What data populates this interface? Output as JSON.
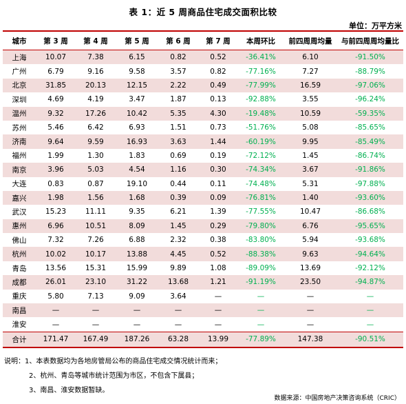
{
  "title": "表 1：近 5 周商品住宅成交面积比较",
  "unit": "单位：万平方米",
  "headers": [
    "城市",
    "第 3 周",
    "第 4 周",
    "第 5 周",
    "第 6 周",
    "第 7 周",
    "本周环比",
    "前四周周均量",
    "与前四周周均量比"
  ],
  "rows": [
    [
      "上海",
      "10.07",
      "7.38",
      "6.15",
      "0.82",
      "0.52",
      "-36.41%",
      "6.10",
      "-91.50%"
    ],
    [
      "广州",
      "6.79",
      "9.16",
      "9.58",
      "3.57",
      "0.82",
      "-77.16%",
      "7.27",
      "-88.79%"
    ],
    [
      "北京",
      "31.85",
      "20.13",
      "12.15",
      "2.22",
      "0.49",
      "-77.99%",
      "16.59",
      "-97.06%"
    ],
    [
      "深圳",
      "4.69",
      "4.19",
      "3.47",
      "1.87",
      "0.13",
      "-92.88%",
      "3.55",
      "-96.24%"
    ],
    [
      "温州",
      "9.32",
      "17.26",
      "10.42",
      "5.35",
      "4.30",
      "-19.48%",
      "10.59",
      "-59.35%"
    ],
    [
      "苏州",
      "5.46",
      "6.42",
      "6.93",
      "1.51",
      "0.73",
      "-51.76%",
      "5.08",
      "-85.65%"
    ],
    [
      "济南",
      "9.64",
      "9.59",
      "16.93",
      "3.63",
      "1.44",
      "-60.19%",
      "9.95",
      "-85.49%"
    ],
    [
      "福州",
      "1.99",
      "1.30",
      "1.83",
      "0.69",
      "0.19",
      "-72.12%",
      "1.45",
      "-86.74%"
    ],
    [
      "南京",
      "3.96",
      "5.03",
      "4.54",
      "1.16",
      "0.30",
      "-74.34%",
      "3.67",
      "-91.86%"
    ],
    [
      "大连",
      "0.83",
      "0.87",
      "19.10",
      "0.44",
      "0.11",
      "-74.48%",
      "5.31",
      "-97.88%"
    ],
    [
      "嘉兴",
      "1.98",
      "1.56",
      "1.68",
      "0.39",
      "0.09",
      "-76.81%",
      "1.40",
      "-93.60%"
    ],
    [
      "武汉",
      "15.23",
      "11.11",
      "9.35",
      "6.21",
      "1.39",
      "-77.55%",
      "10.47",
      "-86.68%"
    ],
    [
      "惠州",
      "6.96",
      "10.51",
      "8.09",
      "1.45",
      "0.29",
      "-79.80%",
      "6.76",
      "-95.65%"
    ],
    [
      "佛山",
      "7.32",
      "7.26",
      "6.88",
      "2.32",
      "0.38",
      "-83.80%",
      "5.94",
      "-93.68%"
    ],
    [
      "杭州",
      "10.02",
      "10.17",
      "13.88",
      "4.45",
      "0.52",
      "-88.38%",
      "9.63",
      "-94.64%"
    ],
    [
      "青岛",
      "13.56",
      "15.31",
      "15.99",
      "9.89",
      "1.08",
      "-89.09%",
      "13.69",
      "-92.12%"
    ],
    [
      "成都",
      "26.01",
      "23.10",
      "31.22",
      "13.68",
      "1.21",
      "-91.19%",
      "23.50",
      "-94.87%"
    ],
    [
      "重庆",
      "5.80",
      "7.13",
      "9.09",
      "3.64",
      "—",
      "—",
      "—",
      "—"
    ],
    [
      "南昌",
      "—",
      "—",
      "—",
      "—",
      "—",
      "—",
      "—",
      "—"
    ],
    [
      "淮安",
      "—",
      "—",
      "—",
      "—",
      "—",
      "—",
      "—",
      "—"
    ]
  ],
  "total": [
    "合计",
    "171.47",
    "167.49",
    "187.26",
    "63.28",
    "13.99",
    "-77.89%",
    "147.38",
    "-90.51%"
  ],
  "notes": [
    "说明：1、本表数据均为各地房管局公布的商品住宅成交情况统计而来；",
    "2、杭州、青岛等城市统计范围为市区，不包含下属县；",
    "3、南昌、淮安数据暂缺。"
  ],
  "source": "数据来源：中国房地产决策咨询系统（CRIC）",
  "colors": {
    "accent_red": "#c00000",
    "row_pink": "#f2dcdb",
    "negative_green": "#00b050"
  }
}
